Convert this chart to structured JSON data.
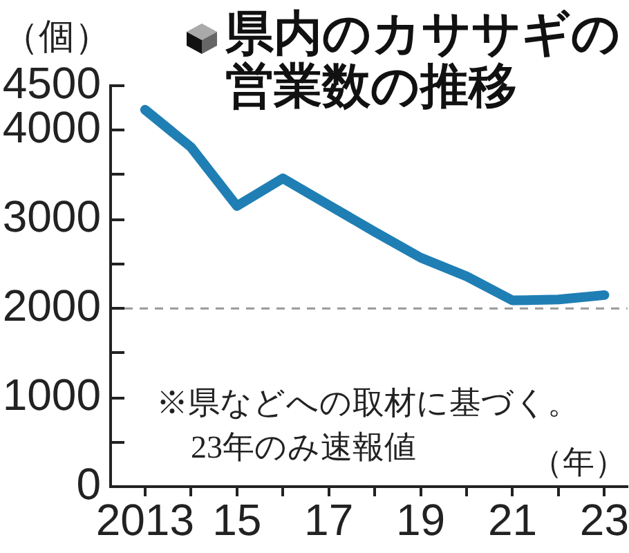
{
  "chart_data": {
    "type": "line",
    "title": "県内のカササギの営業数の推移",
    "ylabel": "（個）",
    "xlabel": "（年）",
    "annotations": [
      "※県などへの取材に基づく。",
      "23年のみ速報値"
    ],
    "x": [
      2013,
      2014,
      2015,
      2016,
      2017,
      2018,
      2019,
      2020,
      2021,
      2022,
      2023
    ],
    "series": [
      {
        "color": "#1f7fb4",
        "values": [
          4230,
          3810,
          3150,
          3460,
          3160,
          2860,
          2570,
          2360,
          2090,
          2100,
          2150
        ]
      }
    ],
    "xlim": [
      2012.25,
      2023.5
    ],
    "xticks": [
      2013,
      {
        "value": 2014,
        "label": null
      },
      {
        "value": 2015,
        "label": "15"
      },
      {
        "value": 2016,
        "label": null
      },
      {
        "value": 2017,
        "label": "17"
      },
      {
        "value": 2018,
        "label": null
      },
      {
        "value": 2019,
        "label": "19"
      },
      {
        "value": 2020,
        "label": null
      },
      {
        "value": 2021,
        "label": "21"
      },
      {
        "value": 2022,
        "label": null
      },
      {
        "value": 2023,
        "label": "23"
      }
    ],
    "ylim": [
      0,
      4500
    ],
    "yticks": [
      0,
      {
        "value": 500,
        "label": null
      },
      1000,
      {
        "value": 1500,
        "label": null
      },
      2000,
      {
        "value": 2500,
        "label": null
      },
      3000,
      {
        "value": 3500,
        "label": null
      },
      4000,
      4500
    ],
    "ref_lines": [
      {
        "axis": "y",
        "value": 2000,
        "color": "#999999",
        "line_style": "dashed"
      }
    ],
    "grid": false,
    "legend": false,
    "marker": "none",
    "line_style": "solid"
  }
}
